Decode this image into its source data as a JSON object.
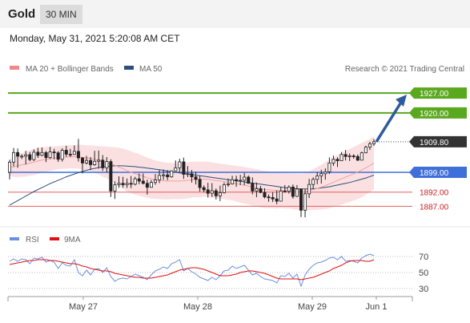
{
  "header": {
    "title": "Gold",
    "timeframe": "30 MIN"
  },
  "timestamp": "Monday, May 31, 2021 5:20:08 AM CET",
  "legend": {
    "ma_bands": "MA 20 + Bollinger Bands",
    "ma50": "MA 50",
    "credit": "Research © 2021 Trading Central"
  },
  "rsi_legend": {
    "rsi": "RSI",
    "ma9": "9MA"
  },
  "colors": {
    "green": "#5aa81e",
    "blue": "#3f6fd8",
    "red": "#e06060",
    "ma50": "#2c4f7e",
    "band": "#fadadd",
    "rsi": "#6a8fe0",
    "ma9": "#e01010"
  },
  "chart_data": [
    {
      "type": "candlestick",
      "title": "Gold",
      "y_range": [
        1882,
        1933
      ],
      "x_ticks": [
        "May 27",
        "May 28",
        "May 29",
        "Jun 1"
      ],
      "levels": [
        {
          "value": 1927.0,
          "label": "1927.00",
          "kind": "resistance"
        },
        {
          "value": 1920.0,
          "label": "1920.00",
          "kind": "resistance"
        },
        {
          "value": 1909.8,
          "label": "1909.80",
          "kind": "last"
        },
        {
          "value": 1899.0,
          "label": "1899.00",
          "kind": "pivot"
        },
        {
          "value": 1892.0,
          "label": "1892.00",
          "kind": "support"
        },
        {
          "value": 1887.0,
          "label": "1887.00",
          "kind": "support"
        }
      ],
      "arrow": {
        "from": 1909.8,
        "to": 1926.5,
        "direction": "up"
      },
      "candles": [
        [
          1899,
          1903.4,
          1896.5,
          1902.6
        ],
        [
          1902.6,
          1907.6,
          1901.1,
          1906
        ],
        [
          1906,
          1907.4,
          1900.6,
          1904.7
        ],
        [
          1904.7,
          1905.4,
          1903.7,
          1904.7
        ],
        [
          1904.7,
          1906.6,
          1901.8,
          1905.2
        ],
        [
          1905.2,
          1906.2,
          1902.9,
          1903.5
        ],
        [
          1903.5,
          1907.1,
          1903,
          1906.1
        ],
        [
          1906.1,
          1907.7,
          1904.1,
          1905
        ],
        [
          1905,
          1907.8,
          1904.7,
          1906
        ],
        [
          1906,
          1906.5,
          1902.6,
          1904.2
        ],
        [
          1904.2,
          1908,
          1903.7,
          1906.2
        ],
        [
          1906.2,
          1907.3,
          1903.6,
          1905.9
        ],
        [
          1905.9,
          1906.5,
          1902.7,
          1903.6
        ],
        [
          1903.6,
          1907.5,
          1902.8,
          1906.8
        ],
        [
          1906.8,
          1908.4,
          1904.5,
          1905.4
        ],
        [
          1905.4,
          1907.3,
          1904.4,
          1905.3
        ],
        [
          1905.3,
          1908.5,
          1905.2,
          1906.4
        ],
        [
          1906.4,
          1910.8,
          1902.8,
          1904.1
        ],
        [
          1904.1,
          1904.3,
          1898.6,
          1902.3
        ],
        [
          1902.3,
          1904.8,
          1901.8,
          1903.2
        ],
        [
          1903.2,
          1904.4,
          1899.8,
          1901.7
        ],
        [
          1901.7,
          1906.6,
          1901.3,
          1902.9
        ],
        [
          1902.9,
          1906.7,
          1900.3,
          1903.3
        ],
        [
          1903.3,
          1905.1,
          1899.5,
          1900.6
        ],
        [
          1900.6,
          1904.4,
          1899,
          1902.8
        ],
        [
          1902.8,
          1903.6,
          1890.3,
          1892.4
        ],
        [
          1892.4,
          1895.8,
          1889.6,
          1894.6
        ],
        [
          1894.6,
          1897.6,
          1893.5,
          1895.1
        ],
        [
          1895.1,
          1897.4,
          1893.6,
          1894.6
        ],
        [
          1894.6,
          1896.8,
          1893.5,
          1895.1
        ],
        [
          1895.1,
          1897.7,
          1893.4,
          1894.8
        ],
        [
          1894.8,
          1897.4,
          1894.4,
          1896.7
        ],
        [
          1896.7,
          1898.6,
          1894.8,
          1895.9
        ],
        [
          1895.9,
          1898.6,
          1894.7,
          1895.1
        ],
        [
          1895.1,
          1896.4,
          1891.1,
          1893.7
        ],
        [
          1893.7,
          1896.3,
          1893.6,
          1895.4
        ],
        [
          1895.4,
          1898.4,
          1894.6,
          1896.3
        ],
        [
          1896.3,
          1899.8,
          1895.2,
          1897.9
        ],
        [
          1897.9,
          1900,
          1896.3,
          1898.1
        ],
        [
          1898.1,
          1899.8,
          1896.2,
          1897.4
        ],
        [
          1897.4,
          1899.7,
          1897.1,
          1899.5
        ],
        [
          1899.5,
          1903.2,
          1899.4,
          1900.6
        ],
        [
          1900.6,
          1903.8,
          1899.1,
          1902.7
        ],
        [
          1902.7,
          1904.2,
          1896.7,
          1898.3
        ],
        [
          1898.3,
          1901.2,
          1897.3,
          1898.5
        ],
        [
          1898.5,
          1899.8,
          1895.4,
          1897.4
        ],
        [
          1897.4,
          1899.2,
          1894.7,
          1896.5
        ],
        [
          1896.5,
          1897.8,
          1892.2,
          1893.6
        ],
        [
          1893.6,
          1894.4,
          1891.9,
          1892.8
        ],
        [
          1892.8,
          1895.3,
          1890.1,
          1891.6
        ],
        [
          1891.6,
          1895.2,
          1890.3,
          1892.5
        ],
        [
          1892.5,
          1893.3,
          1889.4,
          1890.7
        ],
        [
          1890.7,
          1894.3,
          1888.8,
          1891.8
        ],
        [
          1891.8,
          1895.4,
          1891.5,
          1894.6
        ],
        [
          1894.6,
          1896.8,
          1893.9,
          1894.9
        ],
        [
          1894.9,
          1897.8,
          1894.7,
          1896.4
        ],
        [
          1896.4,
          1897.8,
          1893.9,
          1896
        ],
        [
          1896,
          1898.1,
          1894.5,
          1896.2
        ],
        [
          1896.2,
          1898.8,
          1894.5,
          1897.3
        ],
        [
          1897.3,
          1897.9,
          1895.1,
          1895.1
        ],
        [
          1895.1,
          1897.2,
          1891.2,
          1892.4
        ],
        [
          1892.4,
          1895.4,
          1890.2,
          1893.2
        ],
        [
          1893.2,
          1894.2,
          1891.6,
          1891.9
        ],
        [
          1891.9,
          1893.4,
          1889.8,
          1890.3
        ],
        [
          1890.3,
          1891.2,
          1888.6,
          1890.1
        ],
        [
          1890.1,
          1892,
          1888.5,
          1889.6
        ],
        [
          1889.6,
          1892.6,
          1887.7,
          1888.8
        ],
        [
          1888.8,
          1893.8,
          1888.7,
          1892.4
        ],
        [
          1892.4,
          1894.5,
          1891.9,
          1892.3
        ],
        [
          1892.3,
          1894.4,
          1891.5,
          1893.8
        ],
        [
          1893.8,
          1894.7,
          1889.7,
          1890.5
        ],
        [
          1890.5,
          1894.5,
          1890.3,
          1893.1
        ],
        [
          1893.1,
          1893.3,
          1883.2,
          1885.6
        ],
        [
          1885.6,
          1893.1,
          1883.1,
          1891.4
        ],
        [
          1891.4,
          1896.7,
          1889.9,
          1894.7
        ],
        [
          1894.7,
          1897.2,
          1893.1,
          1896.5
        ],
        [
          1896.5,
          1899.1,
          1894.8,
          1897.7
        ],
        [
          1897.7,
          1899.9,
          1895,
          1898.5
        ],
        [
          1898.5,
          1900.4,
          1896.4,
          1899.2
        ],
        [
          1899.2,
          1904.3,
          1898.4,
          1902.3
        ],
        [
          1902.3,
          1904.9,
          1901.3,
          1903.6
        ],
        [
          1903.6,
          1904.3,
          1900.9,
          1903.1
        ],
        [
          1903.1,
          1906.2,
          1903,
          1905.3
        ],
        [
          1905.3,
          1906.9,
          1903.2,
          1904.6
        ],
        [
          1904.6,
          1905.7,
          1903,
          1904.8
        ],
        [
          1904.8,
          1905.4,
          1903.8,
          1904.6
        ],
        [
          1904.6,
          1905.3,
          1903,
          1903.3
        ],
        [
          1903.3,
          1906.3,
          1903.3,
          1905.9
        ],
        [
          1905.9,
          1908.4,
          1905.7,
          1907.9
        ],
        [
          1907.9,
          1909.8,
          1906.9,
          1909.1
        ],
        [
          1909.1,
          1910.8,
          1908.3,
          1909.8
        ]
      ],
      "ma20": [
        1900.7,
        1900.9,
        1901.3,
        1901.6,
        1901.9,
        1902.3,
        1902.6,
        1903,
        1903.3,
        1903.6,
        1903.8,
        1904,
        1904.2,
        1904.3,
        1904.4,
        1904.5,
        1904.5,
        1904.5,
        1904.3,
        1904.1,
        1903.9,
        1903.6,
        1903.3,
        1902.8,
        1902.5,
        1902,
        1901.5,
        1900.9,
        1900.3,
        1899.6,
        1899,
        1898.5,
        1898.1,
        1897.6,
        1897.1,
        1896.7,
        1896.4,
        1896.2,
        1896,
        1895.9,
        1895.9,
        1895.9,
        1895.9,
        1896,
        1896.2,
        1896.4,
        1896.5,
        1896.5,
        1896.6,
        1896.5,
        1896.3,
        1896.1,
        1895.9,
        1895.7,
        1895.5,
        1895.3,
        1895,
        1894.7,
        1894.4,
        1894.1,
        1893.8,
        1893.5,
        1893.2,
        1892.9,
        1892.8,
        1892.7,
        1892.6,
        1892.6,
        1892.5,
        1892.5,
        1892.3,
        1892.2,
        1892.1,
        1892.2,
        1892.5,
        1892.9,
        1893.3,
        1893.8,
        1894.3,
        1894.9,
        1895.5,
        1896.1,
        1896.7,
        1897.3,
        1897.9,
        1898.5,
        1899.1,
        1899.8,
        1900.6,
        1901.4,
        1902.3
      ],
      "upper_band": [
        1903.6,
        1904.4,
        1905.3,
        1905.8,
        1906.3,
        1906.8,
        1907.3,
        1907.6,
        1907.8,
        1908,
        1908.1,
        1908.2,
        1908.3,
        1908.4,
        1908.5,
        1908.6,
        1908.6,
        1908.7,
        1908.7,
        1908.6,
        1908.5,
        1908.4,
        1908.3,
        1908.2,
        1908.1,
        1908,
        1907.9,
        1907.7,
        1907.4,
        1907,
        1906.4,
        1905.9,
        1905.4,
        1904.8,
        1904.2,
        1903.7,
        1903.2,
        1902.9,
        1902.6,
        1902.4,
        1902.3,
        1902.3,
        1902.3,
        1902.4,
        1902.6,
        1902.7,
        1902.8,
        1902.8,
        1902.8,
        1902.7,
        1902.5,
        1902.3,
        1902.1,
        1901.9,
        1901.7,
        1901.5,
        1901.3,
        1901.1,
        1900.9,
        1900.6,
        1900.4,
        1900.1,
        1899.8,
        1899.5,
        1899.3,
        1899.1,
        1899,
        1898.9,
        1898.8,
        1898.8,
        1898.7,
        1898.6,
        1898.6,
        1898.8,
        1899.4,
        1900.1,
        1900.9,
        1901.7,
        1902.6,
        1903.5,
        1904.3,
        1905.1,
        1905.9,
        1906.6,
        1907.3,
        1908,
        1908.7,
        1909.4,
        1910.1,
        1910.8,
        1911.6
      ],
      "lower_band": [
        1897.8,
        1897.4,
        1897.3,
        1897.4,
        1897.5,
        1897.8,
        1898,
        1898.4,
        1898.8,
        1899.2,
        1899.5,
        1899.8,
        1900.1,
        1900.2,
        1900.3,
        1900.4,
        1900.4,
        1900.3,
        1899.9,
        1899.6,
        1899.3,
        1898.8,
        1898.3,
        1897.4,
        1896.9,
        1896,
        1895.1,
        1894.1,
        1893.2,
        1892.2,
        1891.6,
        1891.1,
        1890.8,
        1890.4,
        1890,
        1889.7,
        1889.6,
        1889.5,
        1889.4,
        1889.4,
        1889.5,
        1889.5,
        1889.5,
        1889.6,
        1889.8,
        1890.1,
        1890.2,
        1890.2,
        1890.4,
        1890.3,
        1890.1,
        1889.9,
        1889.7,
        1889.5,
        1889.3,
        1889.1,
        1888.7,
        1888.3,
        1887.9,
        1887.6,
        1887.2,
        1886.9,
        1886.6,
        1886.3,
        1886.3,
        1886.3,
        1886.2,
        1886.3,
        1886.2,
        1886.2,
        1885.9,
        1885.8,
        1885.6,
        1885.6,
        1885.6,
        1885.7,
        1885.7,
        1885.9,
        1886,
        1886.3,
        1886.7,
        1887.1,
        1887.5,
        1888,
        1888.5,
        1889,
        1889.5,
        1890.2,
        1891.1,
        1892,
        1893
      ],
      "ma50": [
        1887.4,
        1888.2,
        1889,
        1889.8,
        1890.6,
        1891.4,
        1892.2,
        1892.9,
        1893.6,
        1894.3,
        1895,
        1895.6,
        1896.2,
        1896.8,
        1897.4,
        1897.9,
        1898.4,
        1898.9,
        1899.3,
        1899.7,
        1900.1,
        1900.4,
        1900.7,
        1900.9,
        1901.1,
        1901.2,
        1901.3,
        1901.3,
        1901.3,
        1901.2,
        1901.1,
        1901,
        1900.8,
        1900.7,
        1900.5,
        1900.3,
        1900.1,
        1899.9,
        1899.7,
        1899.4,
        1899.2,
        1899,
        1898.8,
        1898.6,
        1898.4,
        1898.2,
        1898,
        1897.8,
        1897.6,
        1897.4,
        1897.2,
        1897,
        1896.8,
        1896.6,
        1896.4,
        1896.2,
        1896,
        1895.8,
        1895.6,
        1895.4,
        1895.2,
        1895,
        1894.8,
        1894.6,
        1894.4,
        1894.2,
        1894,
        1893.8,
        1893.6,
        1893.4,
        1893.3,
        1893.2,
        1893.1,
        1893.1,
        1893.1,
        1893.2,
        1893.3,
        1893.5,
        1893.7,
        1893.9,
        1894.2,
        1894.5,
        1894.8,
        1895.1,
        1895.4,
        1895.8,
        1896.2,
        1896.6,
        1897,
        1897.5,
        1898
      ]
    },
    {
      "type": "line",
      "title": "RSI",
      "y_range": [
        20,
        80
      ],
      "y_ticks": [
        70,
        50,
        30
      ],
      "series": [
        {
          "name": "RSI",
          "values": [
            64,
            67,
            64,
            67,
            66,
            61,
            68,
            67,
            69,
            63,
            65,
            63,
            55,
            62,
            59,
            58,
            66,
            50,
            46,
            53,
            47,
            54,
            55,
            50,
            56,
            45,
            39,
            42,
            43,
            42,
            45,
            48,
            46,
            44,
            41,
            47,
            52,
            54,
            57,
            55,
            61,
            63,
            66,
            52,
            55,
            51,
            48,
            44,
            42,
            40,
            44,
            41,
            46,
            52,
            53,
            58,
            55,
            57,
            59,
            53,
            47,
            49,
            45,
            42,
            41,
            40,
            37,
            46,
            45,
            49,
            43,
            48,
            33,
            47,
            54,
            59,
            62,
            63,
            65,
            68,
            69,
            66,
            70,
            64,
            65,
            64,
            62,
            68,
            71,
            73,
            71
          ]
        },
        {
          "name": "9MA",
          "values": [
            60,
            61,
            62,
            63,
            64,
            65,
            65,
            66,
            66,
            66,
            65,
            65,
            64,
            63,
            62,
            61,
            61,
            60,
            58,
            57,
            55,
            54,
            53,
            52,
            52,
            51,
            49,
            48,
            47,
            46,
            45,
            44,
            44,
            43,
            43,
            43,
            44,
            45,
            46,
            47,
            49,
            51,
            53,
            54,
            55,
            56,
            56,
            55,
            54,
            52,
            50,
            48,
            46,
            46,
            46,
            47,
            48,
            50,
            51,
            52,
            52,
            51,
            50,
            49,
            47,
            45,
            43,
            42,
            42,
            42,
            42,
            42,
            41,
            42,
            43,
            44,
            46,
            48,
            50,
            52,
            55,
            57,
            59,
            62,
            64,
            65,
            65,
            65,
            64,
            64,
            66
          ]
        }
      ]
    }
  ]
}
